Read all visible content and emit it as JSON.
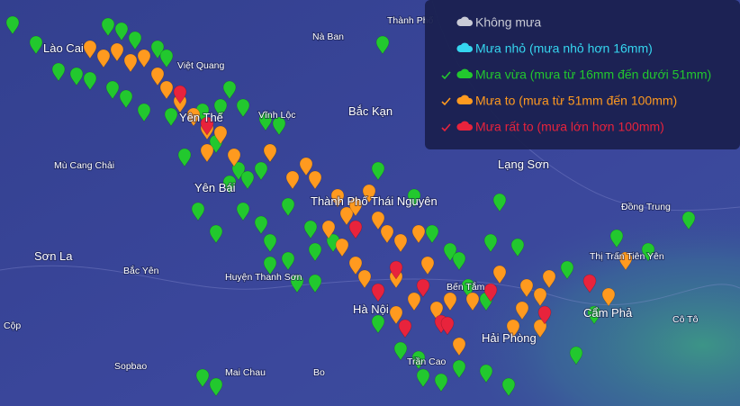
{
  "map": {
    "places": [
      "Thành Phố",
      "Nà Ban",
      "Lào Cai",
      "Việt Quang",
      "Yên Thế",
      "Vĩnh Lộc",
      "Bắc Kạn",
      "Mù Cang Chải",
      "Yên Bái",
      "Thành Phố Thái Nguyên",
      "Lạng Sơn",
      "Đồng Trung",
      "Sơn La",
      "Bắc Yên",
      "Huyện Thanh Sơn",
      "Thị Trấn Tiên Yên",
      "Bến Tắm",
      "Hà Nội",
      "Cẩm Phả",
      "Cô Tô",
      "Cộp",
      "Hải Phòng",
      "Sopbao",
      "Mai Chau",
      "Bo",
      "Trần Cao"
    ]
  },
  "legend": {
    "items": [
      {
        "label": "Không mưa",
        "color": "#c9cbd6",
        "checked": false
      },
      {
        "label": "Mưa nhỏ (mưa nhỏ hơn 16mm)",
        "color": "#35d6f0",
        "checked": false
      },
      {
        "label": "Mưa vừa (mưa từ 16mm đến dưới 51mm)",
        "color": "#22c82e",
        "checked": true
      },
      {
        "label": "Mưa to (mưa từ 51mm đến 100mm)",
        "color": "#ff9a1f",
        "checked": true
      },
      {
        "label": "Mưa rất to (mưa lớn hơn 100mm)",
        "color": "#e8233c",
        "checked": true
      }
    ]
  }
}
